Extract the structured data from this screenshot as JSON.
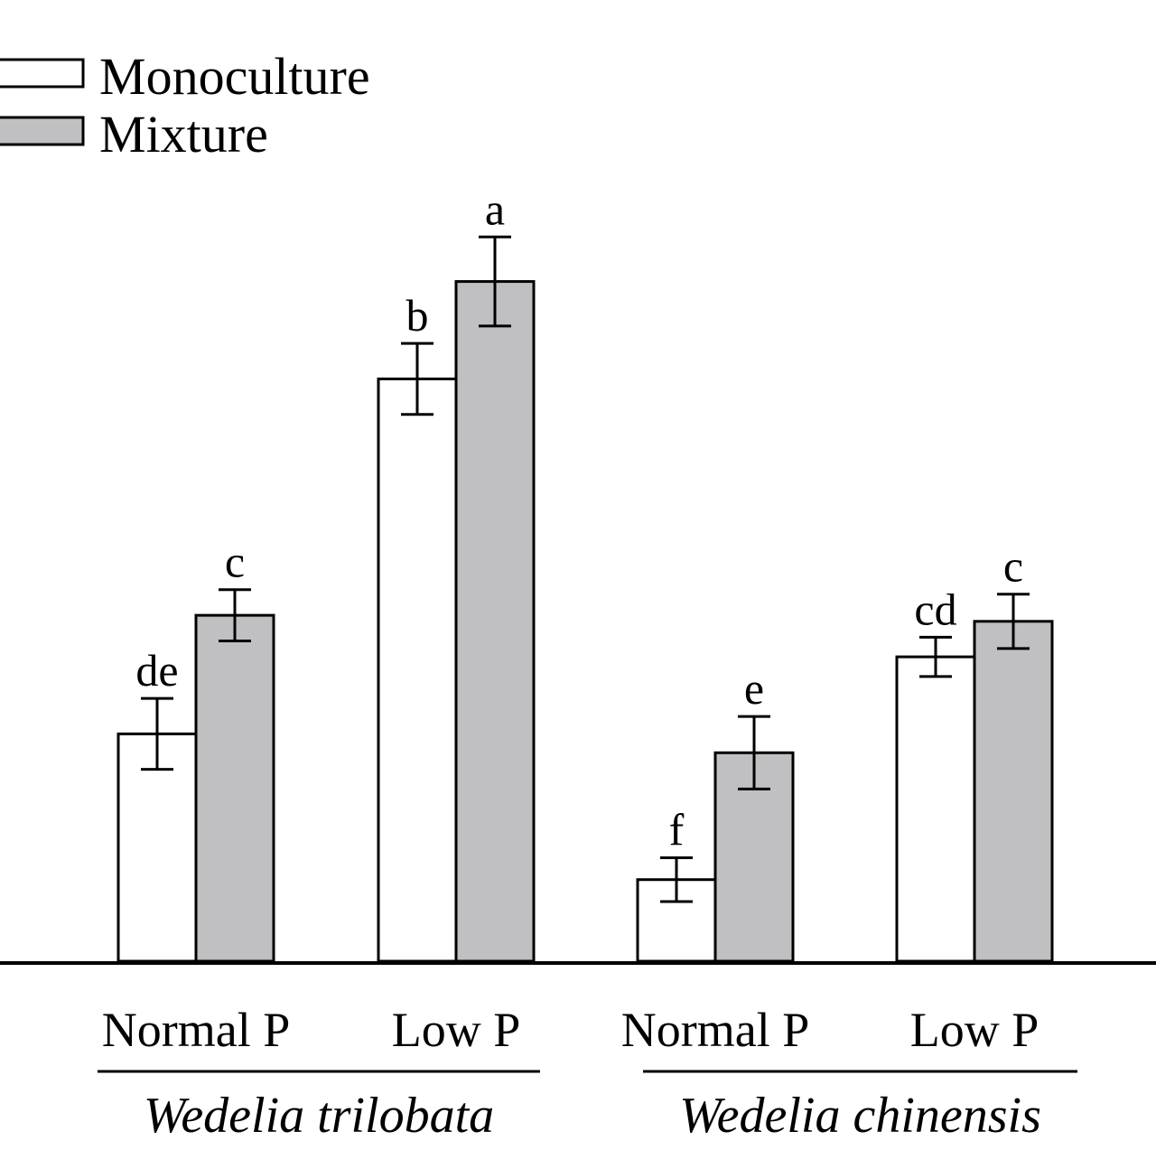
{
  "chart_data": {
    "type": "bar",
    "title": "",
    "xlabel": "",
    "ylabel": "",
    "ylim": [
      0,
      100
    ],
    "grid": false,
    "legend_position": "top-left",
    "categories": [
      "Normal P",
      "Low P",
      "Normal P",
      "Low P"
    ],
    "groups": [
      {
        "label": "Wedelia trilobata",
        "categories": [
          0,
          1
        ]
      },
      {
        "label": "Wedelia chinensis",
        "categories": [
          2,
          3
        ]
      }
    ],
    "series": [
      {
        "name": "Monoculture",
        "color": "#ffffff",
        "values": [
          30.1,
          77.1,
          10.8,
          40.3
        ],
        "errors": [
          4.7,
          4.7,
          2.9,
          2.6
        ],
        "labels": [
          "de",
          "b",
          "f",
          "cd"
        ]
      },
      {
        "name": "Mixture",
        "color": "#c0bfc2",
        "values": [
          45.8,
          90.0,
          27.6,
          45.0
        ],
        "errors": [
          3.4,
          5.9,
          4.8,
          3.6
        ],
        "labels": [
          "c",
          "a",
          "e",
          "c"
        ]
      }
    ]
  }
}
